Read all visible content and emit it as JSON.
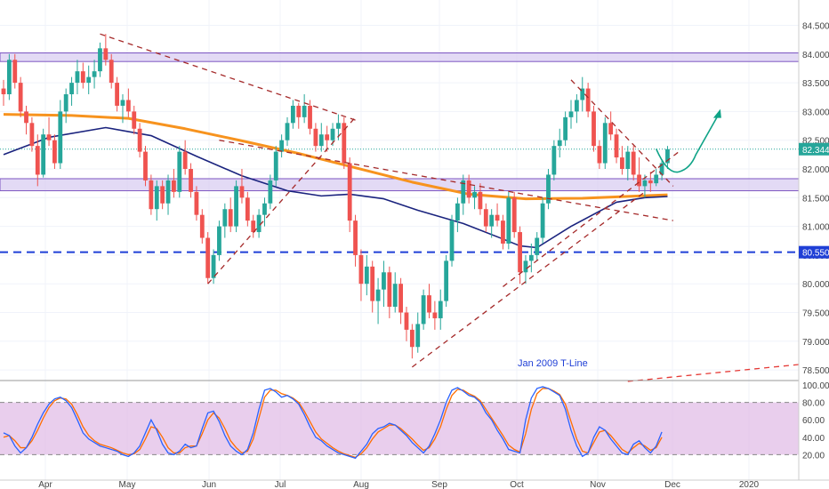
{
  "chart_data": {
    "type": "candlestick",
    "title": "",
    "price_axis": {
      "min": 78.25,
      "max": 84.75,
      "ticks": [
        "84.500",
        "84.000",
        "83.500",
        "83.000",
        "82.500",
        "82.000",
        "81.500",
        "81.000",
        "80.500",
        "80.000",
        "79.500",
        "79.000",
        "78.500"
      ]
    },
    "time_axis": {
      "ticks": [
        "Apr",
        "May",
        "Jun",
        "Jul",
        "Aug",
        "Sep",
        "Oct",
        "Nov",
        "Dec",
        "2020"
      ]
    },
    "oscillator": {
      "min": 0,
      "max": 100,
      "ticks": [
        "100.00",
        "80.00",
        "60.00",
        "40.00",
        "20.00"
      ],
      "band": [
        20,
        80
      ]
    },
    "last_price_label": "82.344",
    "support_level_label": "80.550",
    "support_level": 80.55,
    "zones": [
      {
        "name": "resistance-zone",
        "from": 83.87,
        "to": 84.02
      },
      {
        "name": "support-zone",
        "from": 81.62,
        "to": 81.83
      }
    ],
    "annotation": "Jan 2009 T-Line",
    "colors": {
      "up": "#26a69a",
      "down": "#ef5350",
      "ma_long": "#f7931e",
      "ma_mid": "#1a237e",
      "support_line": "#1f3fd6",
      "zone_fill": "#d9cdf2",
      "zone_border": "#7e57c2",
      "trendline": "#a52a2a",
      "projection": "#0fa387",
      "k_line": "#2962ff",
      "d_line": "#ff6d00",
      "osc_band": "#e1bee7"
    },
    "candles": [
      [
        83.4,
        83.55,
        83.1,
        83.3
      ],
      [
        83.3,
        84.0,
        83.2,
        83.9
      ],
      [
        83.9,
        84.0,
        83.4,
        83.5
      ],
      [
        83.5,
        83.6,
        82.9,
        83.0
      ],
      [
        83.0,
        83.1,
        82.6,
        82.8
      ],
      [
        82.8,
        82.9,
        82.3,
        82.4
      ],
      [
        82.4,
        82.6,
        81.7,
        81.9
      ],
      [
        81.9,
        82.7,
        81.85,
        82.6
      ],
      [
        82.6,
        82.9,
        82.4,
        82.5
      ],
      [
        82.5,
        82.6,
        82.0,
        82.1
      ],
      [
        82.1,
        83.2,
        82.0,
        83.0
      ],
      [
        83.0,
        83.4,
        82.8,
        83.3
      ],
      [
        83.3,
        83.6,
        83.1,
        83.5
      ],
      [
        83.5,
        83.9,
        83.3,
        83.7
      ],
      [
        83.7,
        83.85,
        83.4,
        83.5
      ],
      [
        83.5,
        83.8,
        83.3,
        83.6
      ],
      [
        83.6,
        83.9,
        83.4,
        83.7
      ],
      [
        83.7,
        84.2,
        83.6,
        84.1
      ],
      [
        84.1,
        84.35,
        83.8,
        83.9
      ],
      [
        83.9,
        84.0,
        83.4,
        83.5
      ],
      [
        83.5,
        83.6,
        83.0,
        83.1
      ],
      [
        83.1,
        83.3,
        82.8,
        83.2
      ],
      [
        83.2,
        83.4,
        82.9,
        83.0
      ],
      [
        83.0,
        83.1,
        82.6,
        82.7
      ],
      [
        82.7,
        82.8,
        82.2,
        82.3
      ],
      [
        82.3,
        82.4,
        81.7,
        81.8
      ],
      [
        81.8,
        81.9,
        81.2,
        81.3
      ],
      [
        81.3,
        81.8,
        81.1,
        81.7
      ],
      [
        81.7,
        81.8,
        81.3,
        81.4
      ],
      [
        81.4,
        81.9,
        81.2,
        81.8
      ],
      [
        81.8,
        82.0,
        81.5,
        81.6
      ],
      [
        81.6,
        82.4,
        81.5,
        82.3
      ],
      [
        82.3,
        82.5,
        81.9,
        82.0
      ],
      [
        82.0,
        82.1,
        81.5,
        81.6
      ],
      [
        81.6,
        81.7,
        81.1,
        81.2
      ],
      [
        81.2,
        81.3,
        80.7,
        80.8
      ],
      [
        80.8,
        80.9,
        80.0,
        80.1
      ],
      [
        80.1,
        80.6,
        80.0,
        80.5
      ],
      [
        80.5,
        81.1,
        80.4,
        81.0
      ],
      [
        81.0,
        81.4,
        80.8,
        81.3
      ],
      [
        81.3,
        81.5,
        80.9,
        81.0
      ],
      [
        81.0,
        81.8,
        80.9,
        81.7
      ],
      [
        81.7,
        82.0,
        81.4,
        81.5
      ],
      [
        81.5,
        81.6,
        81.0,
        81.1
      ],
      [
        81.1,
        81.2,
        80.8,
        80.9
      ],
      [
        80.9,
        81.3,
        80.8,
        81.2
      ],
      [
        81.2,
        81.5,
        81.0,
        81.4
      ],
      [
        81.4,
        81.9,
        81.3,
        81.8
      ],
      [
        81.8,
        82.4,
        81.7,
        82.3
      ],
      [
        82.3,
        82.6,
        82.2,
        82.5
      ],
      [
        82.5,
        82.9,
        82.4,
        82.8
      ],
      [
        82.8,
        83.2,
        82.7,
        83.1
      ],
      [
        83.1,
        83.15,
        82.7,
        82.9
      ],
      [
        82.9,
        83.3,
        82.8,
        83.1
      ],
      [
        83.1,
        83.2,
        82.6,
        82.7
      ],
      [
        82.7,
        82.8,
        82.3,
        82.4
      ],
      [
        82.4,
        82.8,
        82.3,
        82.6
      ],
      [
        82.6,
        82.75,
        82.3,
        82.5
      ],
      [
        82.5,
        82.8,
        82.4,
        82.7
      ],
      [
        82.7,
        82.95,
        82.5,
        82.8
      ],
      [
        82.8,
        82.9,
        82.0,
        82.1
      ],
      [
        82.1,
        82.2,
        80.9,
        81.1
      ],
      [
        81.1,
        81.2,
        80.3,
        80.5
      ],
      [
        80.5,
        80.6,
        79.7,
        80.0
      ],
      [
        80.0,
        80.5,
        79.8,
        80.3
      ],
      [
        80.3,
        80.4,
        79.5,
        79.7
      ],
      [
        79.7,
        80.1,
        79.3,
        79.9
      ],
      [
        79.9,
        80.4,
        79.6,
        80.2
      ],
      [
        80.2,
        80.3,
        79.4,
        79.6
      ],
      [
        79.6,
        80.2,
        79.5,
        80.0
      ],
      [
        80.0,
        80.1,
        79.3,
        79.5
      ],
      [
        79.5,
        79.6,
        79.0,
        79.2
      ],
      [
        79.2,
        79.3,
        78.7,
        78.9
      ],
      [
        78.9,
        79.5,
        78.8,
        79.3
      ],
      [
        79.3,
        79.9,
        79.2,
        79.8
      ],
      [
        79.8,
        80.0,
        79.4,
        79.5
      ],
      [
        79.5,
        79.7,
        79.2,
        79.4
      ],
      [
        79.4,
        79.9,
        79.2,
        79.7
      ],
      [
        79.7,
        80.5,
        79.6,
        80.4
      ],
      [
        80.4,
        81.2,
        80.3,
        81.1
      ],
      [
        81.1,
        81.5,
        80.9,
        81.4
      ],
      [
        81.4,
        81.9,
        81.2,
        81.8
      ],
      [
        81.8,
        81.9,
        81.4,
        81.5
      ],
      [
        81.5,
        81.7,
        81.3,
        81.6
      ],
      [
        81.6,
        81.75,
        81.2,
        81.3
      ],
      [
        81.3,
        81.4,
        80.9,
        81.0
      ],
      [
        81.0,
        81.3,
        80.8,
        81.2
      ],
      [
        81.2,
        81.4,
        81.0,
        81.1
      ],
      [
        81.1,
        81.2,
        80.6,
        80.7
      ],
      [
        80.7,
        81.6,
        80.6,
        81.5
      ],
      [
        81.5,
        81.6,
        80.8,
        80.9
      ],
      [
        80.9,
        81.0,
        80.0,
        80.2
      ],
      [
        80.2,
        80.5,
        80.0,
        80.4
      ],
      [
        80.4,
        80.7,
        80.2,
        80.5
      ],
      [
        80.5,
        80.9,
        80.4,
        80.8
      ],
      [
        80.8,
        81.5,
        80.7,
        81.4
      ],
      [
        81.4,
        82.0,
        81.3,
        81.9
      ],
      [
        81.9,
        82.5,
        81.8,
        82.4
      ],
      [
        82.4,
        82.7,
        82.2,
        82.5
      ],
      [
        82.5,
        83.0,
        82.4,
        82.9
      ],
      [
        82.9,
        83.2,
        82.7,
        83.0
      ],
      [
        83.0,
        83.3,
        82.8,
        83.2
      ],
      [
        83.2,
        83.6,
        83.0,
        83.4
      ],
      [
        83.4,
        83.5,
        82.9,
        83.0
      ],
      [
        83.0,
        83.1,
        82.3,
        82.4
      ],
      [
        82.4,
        82.5,
        82.0,
        82.1
      ],
      [
        82.1,
        82.9,
        82.0,
        82.8
      ],
      [
        82.8,
        83.0,
        82.5,
        82.6
      ],
      [
        82.6,
        82.7,
        82.1,
        82.2
      ],
      [
        82.2,
        82.4,
        81.9,
        82.0
      ],
      [
        82.0,
        82.4,
        81.8,
        82.3
      ],
      [
        82.3,
        82.4,
        81.8,
        81.9
      ],
      [
        81.9,
        82.2,
        81.6,
        81.7
      ],
      [
        81.7,
        81.9,
        81.5,
        81.8
      ],
      [
        81.8,
        81.95,
        81.6,
        81.75
      ],
      [
        81.75,
        82.0,
        81.7,
        81.9
      ],
      [
        81.9,
        82.15,
        81.8,
        82.1
      ],
      [
        82.1,
        82.4,
        82.0,
        82.344
      ]
    ],
    "ma_long": [
      [
        0,
        82.95
      ],
      [
        12,
        82.93
      ],
      [
        22,
        82.88
      ],
      [
        32,
        82.7
      ],
      [
        42,
        82.49
      ],
      [
        52,
        82.27
      ],
      [
        62,
        82.02
      ],
      [
        72,
        81.77
      ],
      [
        82,
        81.56
      ],
      [
        92,
        81.48
      ],
      [
        102,
        81.49
      ],
      [
        112,
        81.53
      ],
      [
        117,
        81.55
      ]
    ],
    "ma_mid": [
      [
        0,
        82.25
      ],
      [
        8,
        82.55
      ],
      [
        18,
        82.72
      ],
      [
        26,
        82.58
      ],
      [
        34,
        82.22
      ],
      [
        42,
        81.88
      ],
      [
        50,
        81.62
      ],
      [
        56,
        81.53
      ],
      [
        61,
        81.56
      ],
      [
        67,
        81.48
      ],
      [
        73,
        81.28
      ],
      [
        81,
        81.05
      ],
      [
        88,
        80.78
      ],
      [
        91,
        80.66
      ],
      [
        94,
        80.63
      ],
      [
        100,
        81.0
      ],
      [
        108,
        81.42
      ],
      [
        113,
        81.5
      ],
      [
        117,
        81.52
      ]
    ],
    "trendlines": [
      {
        "points": [
          [
            17,
            84.35
          ],
          [
            62,
            82.85
          ]
        ],
        "label": ""
      },
      {
        "points": [
          [
            36,
            80.0
          ],
          [
            62,
            82.9
          ]
        ],
        "label": ""
      },
      {
        "points": [
          [
            38,
            82.5
          ],
          [
            118,
            81.1
          ]
        ],
        "label": ""
      },
      {
        "points": [
          [
            72,
            78.55
          ],
          [
            113,
            81.6
          ]
        ],
        "label": ""
      },
      {
        "points": [
          [
            88,
            79.95
          ],
          [
            119,
            82.3
          ]
        ],
        "label": ""
      },
      {
        "points": [
          [
            100,
            83.55
          ],
          [
            118,
            81.7
          ]
        ],
        "label": ""
      },
      {
        "points": [
          [
            110,
            78.45
          ],
          [
            165,
            78.75
          ]
        ],
        "label": "Jan 2009 T-Line"
      }
    ],
    "projection": [
      [
        115,
        82.35
      ],
      [
        117,
        81.9
      ],
      [
        119,
        81.95
      ],
      [
        122,
        82.25
      ],
      [
        126,
        82.95
      ]
    ],
    "stoch_k": [
      45,
      42,
      30,
      22,
      28,
      40,
      55,
      68,
      78,
      84,
      86,
      82,
      74,
      60,
      45,
      38,
      34,
      30,
      28,
      26,
      24,
      20,
      18,
      22,
      30,
      45,
      60,
      48,
      32,
      22,
      20,
      24,
      32,
      28,
      30,
      50,
      68,
      70,
      58,
      42,
      30,
      24,
      20,
      26,
      45,
      72,
      94,
      96,
      92,
      86,
      88,
      84,
      78,
      66,
      52,
      40,
      36,
      30,
      26,
      22,
      20,
      18,
      16,
      24,
      32,
      44,
      50,
      52,
      56,
      54,
      48,
      42,
      34,
      28,
      22,
      30,
      44,
      60,
      80,
      94,
      97,
      93,
      88,
      86,
      80,
      68,
      60,
      48,
      38,
      26,
      24,
      22,
      60,
      85,
      96,
      98,
      96,
      92,
      88,
      72,
      48,
      30,
      18,
      22,
      40,
      52,
      48,
      38,
      30,
      22,
      20,
      32,
      36,
      28,
      22,
      30,
      46
    ],
    "stoch_d": [
      40,
      42,
      36,
      28,
      28,
      36,
      48,
      62,
      74,
      82,
      85,
      84,
      78,
      66,
      52,
      42,
      36,
      32,
      30,
      28,
      25,
      22,
      20,
      21,
      26,
      38,
      52,
      50,
      40,
      28,
      22,
      22,
      28,
      30,
      30,
      44,
      60,
      68,
      62,
      50,
      36,
      28,
      22,
      24,
      38,
      62,
      86,
      94,
      94,
      90,
      88,
      85,
      80,
      70,
      58,
      46,
      38,
      33,
      28,
      24,
      21,
      19,
      17,
      21,
      28,
      38,
      46,
      50,
      54,
      54,
      50,
      44,
      38,
      31,
      25,
      28,
      38,
      52,
      72,
      88,
      95,
      94,
      90,
      87,
      82,
      72,
      62,
      52,
      42,
      31,
      26,
      23,
      44,
      72,
      90,
      96,
      96,
      93,
      89,
      78,
      58,
      38,
      24,
      22,
      34,
      46,
      48,
      42,
      34,
      26,
      22,
      28,
      33,
      30,
      25,
      28,
      40
    ]
  }
}
